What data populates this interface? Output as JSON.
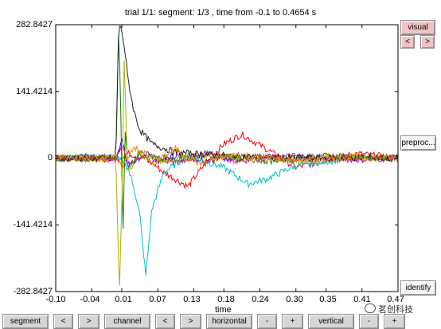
{
  "window": {
    "title": "trial 1/1: segment: 1/3 , time from -0.1 to 0.4654 s"
  },
  "axes": {
    "y_ticks": [
      "282.8427",
      "141.4214",
      "0",
      "-141.4214",
      "-282.8427"
    ],
    "x_ticks": [
      "-0.10",
      "-0.04",
      "0.01",
      "0.07",
      "0.13",
      "0.18",
      "0.24",
      "0.30",
      "0.35",
      "0.41",
      "0.47"
    ],
    "xlabel": "time"
  },
  "right_panel": {
    "visual_label": "visual",
    "prev_label": "<",
    "next_label": ">",
    "preproc_label": "preproc...",
    "identify_label": "identify"
  },
  "bottom_bar": {
    "segment_label": "segment",
    "segment_prev": "<",
    "segment_next": ">",
    "channel_label": "channel",
    "channel_prev": "<",
    "channel_next": ">",
    "horizontal_label": "horizontal",
    "horizontal_minus": "-",
    "horizontal_plus": "+",
    "vertical_label": "vertical",
    "vertical_minus": "-",
    "vertical_plus": "+"
  },
  "watermark": {
    "text": "茗创科技"
  },
  "chart_data": {
    "type": "line",
    "title": "trial 1/1: segment: 1/3 , time from -0.1 to 0.4654 s",
    "xlabel": "time",
    "ylabel": "",
    "xlim": [
      -0.1,
      0.47
    ],
    "ylim": [
      -282.8427,
      282.8427
    ],
    "x_ticks": [
      -0.1,
      -0.04,
      0.01,
      0.07,
      0.13,
      0.18,
      0.24,
      0.3,
      0.35,
      0.41,
      0.47
    ],
    "y_ticks": [
      282.8427,
      141.4214,
      0,
      -141.4214,
      -282.8427
    ],
    "grid": false,
    "series": [
      {
        "color": "#0000ff",
        "x": [
          -0.1,
          -0.05,
          0.0,
          0.01,
          0.02,
          0.04,
          0.06,
          0.1,
          0.15,
          0.2,
          0.3,
          0.4,
          0.47
        ],
        "y": [
          0,
          2,
          -3,
          40,
          -20,
          10,
          -8,
          5,
          -4,
          3,
          -2,
          2,
          0
        ]
      },
      {
        "color": "#ff0000",
        "x": [
          -0.1,
          0.0,
          0.02,
          0.05,
          0.08,
          0.1,
          0.12,
          0.15,
          0.18,
          0.21,
          0.25,
          0.3,
          0.35,
          0.4,
          0.47
        ],
        "y": [
          0,
          -2,
          10,
          0,
          -30,
          -45,
          -60,
          -10,
          30,
          50,
          20,
          -20,
          -5,
          10,
          0
        ]
      },
      {
        "color": "#00c0c0",
        "x": [
          -0.1,
          0.0,
          0.02,
          0.03,
          0.04,
          0.05,
          0.06,
          0.08,
          0.12,
          0.18,
          0.22,
          0.25,
          0.3,
          0.4,
          0.47
        ],
        "y": [
          0,
          3,
          -20,
          -60,
          -120,
          -250,
          -110,
          -30,
          5,
          -20,
          -55,
          -45,
          -15,
          0,
          0
        ]
      },
      {
        "color": "#008000",
        "x": [
          -0.1,
          0.0,
          0.005,
          0.008,
          0.012,
          0.016,
          0.02,
          0.04,
          0.08,
          0.15,
          0.25,
          0.35,
          0.47
        ],
        "y": [
          0,
          0,
          282,
          120,
          -150,
          60,
          -20,
          10,
          -5,
          8,
          -6,
          4,
          0
        ]
      },
      {
        "color": "#c000c0",
        "x": [
          -0.1,
          0.0,
          0.01,
          0.02,
          0.05,
          0.1,
          0.15,
          0.2,
          0.3,
          0.4,
          0.47
        ],
        "y": [
          0,
          0,
          30,
          -15,
          8,
          -10,
          12,
          -6,
          5,
          -3,
          0
        ]
      },
      {
        "color": "#b0b000",
        "x": [
          -0.1,
          0.0,
          0.006,
          0.01,
          0.014,
          0.02,
          0.04,
          0.08,
          0.15,
          0.25,
          0.35,
          0.47
        ],
        "y": [
          0,
          0,
          -282,
          -100,
          200,
          -30,
          15,
          -8,
          6,
          -4,
          3,
          0
        ]
      },
      {
        "color": "#202020",
        "x": [
          -0.1,
          0.0,
          0.005,
          0.01,
          0.015,
          0.02,
          0.03,
          0.04,
          0.06,
          0.1,
          0.2,
          0.3,
          0.47
        ],
        "y": [
          0,
          0,
          282,
          270,
          230,
          170,
          100,
          60,
          30,
          12,
          4,
          1,
          0
        ]
      },
      {
        "color": "#ff8000",
        "x": [
          -0.1,
          0.0,
          0.01,
          0.03,
          0.06,
          0.1,
          0.14,
          0.2,
          0.3,
          0.4,
          0.47
        ],
        "y": [
          0,
          0,
          -20,
          25,
          -15,
          20,
          -12,
          8,
          -5,
          3,
          0
        ]
      }
    ]
  }
}
